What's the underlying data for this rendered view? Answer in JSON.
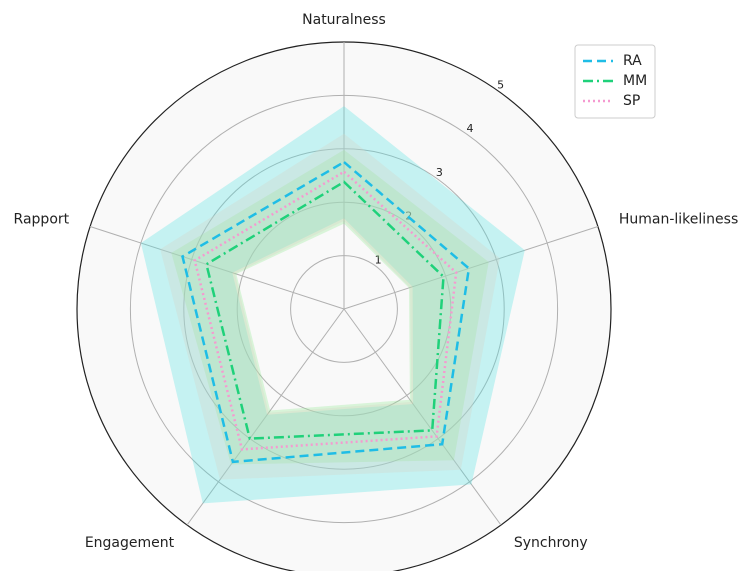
{
  "chart_data": {
    "type": "radar",
    "categories": [
      "Naturalness",
      "Human-likeliness",
      "Synchrony",
      "Engagement",
      "Rapport"
    ],
    "ylim": [
      0,
      5
    ],
    "yticks": [
      1,
      2,
      3,
      4,
      5
    ],
    "grid": true,
    "legend": "upper right",
    "series": [
      {
        "name": "RA",
        "color": "#1fbde6",
        "dash": "dashed",
        "band_color": "#4de0e0",
        "values": [
          2.75,
          2.46,
          3.13,
          3.54,
          3.18
        ],
        "lower": [
          1.7,
          1.35,
          2.2,
          2.45,
          2.2
        ],
        "upper": [
          3.8,
          3.56,
          4.06,
          4.5,
          4.0
        ]
      },
      {
        "name": "MM",
        "color": "#1fd17a",
        "dash": "dashdot",
        "band_color": "#8fe88f",
        "values": [
          2.38,
          1.96,
          2.81,
          3.0,
          2.71
        ],
        "lower": [
          1.6,
          1.28,
          2.1,
          2.35,
          2.12
        ],
        "upper": [
          2.98,
          2.85,
          3.5,
          3.6,
          3.4
        ]
      },
      {
        "name": "SP",
        "color": "#f59ad0",
        "dash": "dotted",
        "band_color": "#d8cfc4",
        "values": [
          2.57,
          2.21,
          2.95,
          3.25,
          2.94
        ],
        "lower": [
          1.65,
          1.3,
          2.15,
          2.4,
          2.15
        ],
        "upper": [
          3.28,
          3.07,
          3.72,
          3.95,
          3.62
        ]
      }
    ]
  }
}
